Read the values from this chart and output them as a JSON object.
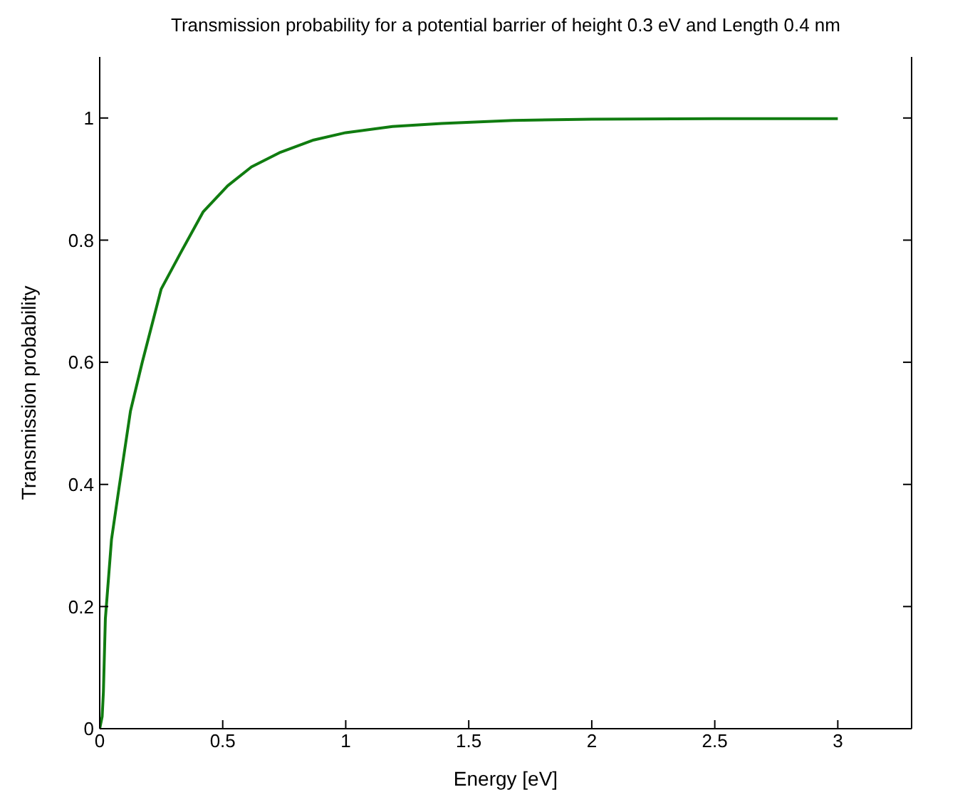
{
  "chart_data": {
    "type": "line",
    "title": "Transmission probability for a potential barrier of height 0.3 eV and Length 0.4 nm",
    "xlabel": "Energy [eV]",
    "ylabel": "Transmission probability",
    "x": [
      0,
      0.01,
      0.015,
      0.023,
      0.048,
      0.077,
      0.125,
      0.173,
      0.25,
      0.33,
      0.42,
      0.52,
      0.617,
      0.73,
      0.87,
      1.0,
      1.19,
      1.39,
      1.68,
      2.0,
      2.5,
      3.0
    ],
    "series": [
      {
        "color": "#107c10",
        "values": [
          0,
          0.02,
          0.06,
          0.18,
          0.31,
          0.39,
          0.52,
          0.6,
          0.72,
          0.78,
          0.846,
          0.889,
          0.92,
          0.943,
          0.964,
          0.976,
          0.986,
          0.991,
          0.996,
          0.998,
          0.999,
          0.999
        ]
      }
    ],
    "xlim": [
      0,
      3.3
    ],
    "xticks": [
      0,
      0.5,
      1,
      1.5,
      2,
      2.5,
      3
    ],
    "ylim": [
      0,
      1.1
    ],
    "yticks": [
      0,
      0.2,
      0.4,
      0.6,
      0.8,
      1
    ],
    "grid": false,
    "legend": false,
    "marker": "none",
    "line_style": "solid"
  }
}
